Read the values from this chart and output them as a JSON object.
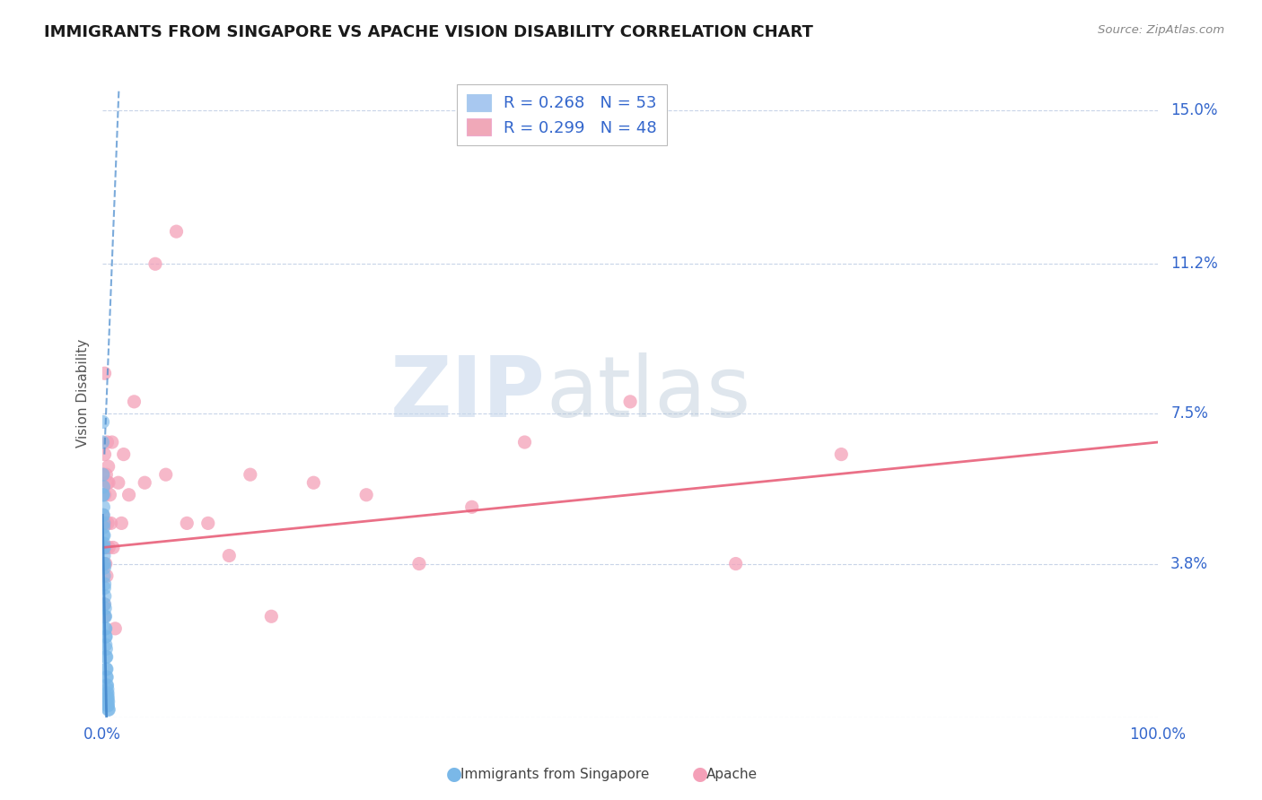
{
  "title": "IMMIGRANTS FROM SINGAPORE VS APACHE VISION DISABILITY CORRELATION CHART",
  "source": "Source: ZipAtlas.com",
  "xlabel": "",
  "ylabel": "Vision Disability",
  "watermark_zip": "ZIP",
  "watermark_atlas": "atlas",
  "xlim": [
    0,
    1.0
  ],
  "ylim": [
    0,
    0.16
  ],
  "xticks": [
    0.0,
    1.0
  ],
  "xticklabels": [
    "0.0%",
    "100.0%"
  ],
  "ytick_positions": [
    0.0,
    0.038,
    0.075,
    0.112,
    0.15
  ],
  "ytick_labels": [
    "",
    "3.8%",
    "7.5%",
    "11.2%",
    "15.0%"
  ],
  "legend_entries": [
    {
      "label": "R = 0.268   N = 53",
      "color": "#a8c8f0"
    },
    {
      "label": "R = 0.299   N = 48",
      "color": "#f0a8b8"
    }
  ],
  "singapore_color": "#7ab8e8",
  "apache_color": "#f4a0b8",
  "singapore_line_color": "#4488cc",
  "apache_line_color": "#e8607a",
  "background_color": "#ffffff",
  "grid_color": "#c8d4e8",
  "singapore_points": [
    [
      0.0002,
      0.068
    ],
    [
      0.0003,
      0.073
    ],
    [
      0.0005,
      0.05
    ],
    [
      0.0005,
      0.055
    ],
    [
      0.0005,
      0.06
    ],
    [
      0.0008,
      0.045
    ],
    [
      0.0008,
      0.05
    ],
    [
      0.0008,
      0.055
    ],
    [
      0.001,
      0.042
    ],
    [
      0.001,
      0.047
    ],
    [
      0.001,
      0.052
    ],
    [
      0.001,
      0.057
    ],
    [
      0.0012,
      0.038
    ],
    [
      0.0012,
      0.043
    ],
    [
      0.0012,
      0.048
    ],
    [
      0.0015,
      0.035
    ],
    [
      0.0015,
      0.04
    ],
    [
      0.0015,
      0.045
    ],
    [
      0.0018,
      0.032
    ],
    [
      0.0018,
      0.037
    ],
    [
      0.0018,
      0.042
    ],
    [
      0.002,
      0.028
    ],
    [
      0.002,
      0.033
    ],
    [
      0.002,
      0.038
    ],
    [
      0.0022,
      0.025
    ],
    [
      0.0022,
      0.03
    ],
    [
      0.0025,
      0.022
    ],
    [
      0.0025,
      0.027
    ],
    [
      0.0028,
      0.02
    ],
    [
      0.0028,
      0.025
    ],
    [
      0.003,
      0.018
    ],
    [
      0.003,
      0.022
    ],
    [
      0.0033,
      0.015
    ],
    [
      0.0033,
      0.02
    ],
    [
      0.0035,
      0.012
    ],
    [
      0.0035,
      0.017
    ],
    [
      0.0038,
      0.01
    ],
    [
      0.0038,
      0.015
    ],
    [
      0.004,
      0.008
    ],
    [
      0.004,
      0.012
    ],
    [
      0.0042,
      0.006
    ],
    [
      0.0042,
      0.01
    ],
    [
      0.0045,
      0.005
    ],
    [
      0.0045,
      0.008
    ],
    [
      0.0048,
      0.004
    ],
    [
      0.0048,
      0.007
    ],
    [
      0.005,
      0.003
    ],
    [
      0.005,
      0.006
    ],
    [
      0.0052,
      0.003
    ],
    [
      0.0052,
      0.005
    ],
    [
      0.0055,
      0.002
    ],
    [
      0.0055,
      0.004
    ],
    [
      0.006,
      0.002
    ]
  ],
  "apache_points": [
    [
      0.0005,
      0.05
    ],
    [
      0.0008,
      0.06
    ],
    [
      0.001,
      0.048
    ],
    [
      0.0012,
      0.038
    ],
    [
      0.0015,
      0.028
    ],
    [
      0.0018,
      0.025
    ],
    [
      0.002,
      0.085
    ],
    [
      0.002,
      0.065
    ],
    [
      0.0022,
      0.055
    ],
    [
      0.0025,
      0.048
    ],
    [
      0.0028,
      0.042
    ],
    [
      0.003,
      0.038
    ],
    [
      0.0035,
      0.06
    ],
    [
      0.0038,
      0.042
    ],
    [
      0.004,
      0.035
    ],
    [
      0.0045,
      0.068
    ],
    [
      0.0048,
      0.058
    ],
    [
      0.005,
      0.048
    ],
    [
      0.0055,
      0.062
    ],
    [
      0.0058,
      0.058
    ],
    [
      0.006,
      0.042
    ],
    [
      0.007,
      0.055
    ],
    [
      0.008,
      0.048
    ],
    [
      0.009,
      0.068
    ],
    [
      0.01,
      0.042
    ],
    [
      0.012,
      0.022
    ],
    [
      0.015,
      0.058
    ],
    [
      0.018,
      0.048
    ],
    [
      0.02,
      0.065
    ],
    [
      0.025,
      0.055
    ],
    [
      0.03,
      0.078
    ],
    [
      0.04,
      0.058
    ],
    [
      0.05,
      0.112
    ],
    [
      0.06,
      0.06
    ],
    [
      0.07,
      0.12
    ],
    [
      0.08,
      0.048
    ],
    [
      0.1,
      0.048
    ],
    [
      0.12,
      0.04
    ],
    [
      0.14,
      0.06
    ],
    [
      0.16,
      0.025
    ],
    [
      0.2,
      0.058
    ],
    [
      0.25,
      0.055
    ],
    [
      0.3,
      0.038
    ],
    [
      0.35,
      0.052
    ],
    [
      0.4,
      0.068
    ],
    [
      0.5,
      0.078
    ],
    [
      0.6,
      0.038
    ],
    [
      0.7,
      0.065
    ]
  ],
  "singapore_solid_line": {
    "x_start": 0.0,
    "x_end": 0.0038,
    "y_start": 0.05,
    "y_end": 0.0
  },
  "singapore_dashed_line": {
    "x_start": 0.0018,
    "x_end": 0.0155,
    "y_start": 0.065,
    "y_end": 0.155
  },
  "apache_regression": {
    "x_start": 0.0,
    "x_end": 1.0,
    "y_start": 0.042,
    "y_end": 0.068
  }
}
